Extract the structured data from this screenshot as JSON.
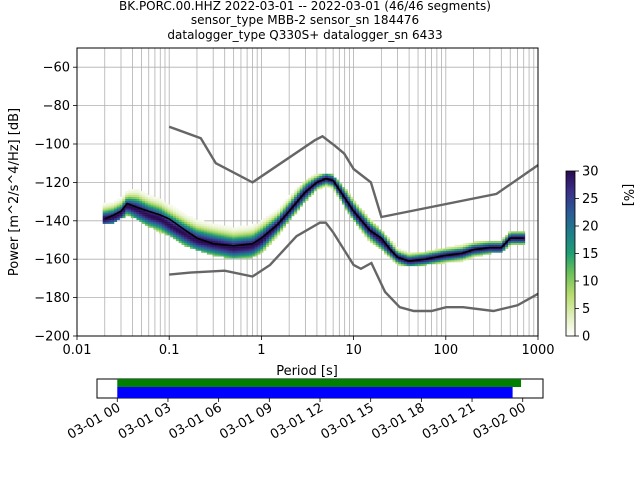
{
  "title_lines": [
    "BK.PORC.00.HHZ   2022-03-01 -- 2022-03-01  (46/46 segments)",
    "sensor_type MBB-2 sensor_sn 184476",
    "datalogger_type Q330S+ datalogger_sn 6433"
  ],
  "colors": {
    "mean_curve": "#000000",
    "noise_model": "#666666",
    "grid": "#b0b0b0",
    "coverage_green": "#008000",
    "coverage_blue": "#0000ff"
  },
  "chart_data": [
    {
      "type": "heatmap",
      "subtype": "probabilistic_psd",
      "xlabel": "Period [s]",
      "ylabel": "Power [m^2/s^4/Hz] [dB]",
      "xscale": "log",
      "xlim": [
        0.01,
        1000
      ],
      "ylim": [
        -200,
        -50
      ],
      "x_ticks": [
        0.01,
        0.1,
        1,
        10,
        100,
        1000
      ],
      "x_tick_labels": [
        "0.01",
        "0.1",
        "1",
        "10",
        "100",
        "1000"
      ],
      "y_ticks": [
        -200,
        -180,
        -160,
        -140,
        -120,
        -100,
        -80,
        -60
      ],
      "y_tick_labels": [
        "−200",
        "−180",
        "−160",
        "−140",
        "−120",
        "−100",
        "−80",
        "−60"
      ],
      "grid": true,
      "colorbar": {
        "label": "[%]",
        "range": [
          0,
          30
        ],
        "ticks": [
          0,
          5,
          10,
          15,
          20,
          25,
          30
        ],
        "tick_labels": [
          "0",
          "5",
          "10",
          "15",
          "20",
          "25",
          "30"
        ],
        "colormap": "pqlx"
      },
      "mean_psd": [
        [
          0.02,
          -139
        ],
        [
          0.025,
          -137
        ],
        [
          0.03,
          -135
        ],
        [
          0.035,
          -131
        ],
        [
          0.045,
          -133
        ],
        [
          0.06,
          -135
        ],
        [
          0.08,
          -137
        ],
        [
          0.1,
          -139
        ],
        [
          0.15,
          -145
        ],
        [
          0.2,
          -149
        ],
        [
          0.3,
          -152
        ],
        [
          0.5,
          -153
        ],
        [
          0.8,
          -152
        ],
        [
          1.0,
          -149
        ],
        [
          1.5,
          -142
        ],
        [
          2.0,
          -135
        ],
        [
          3.0,
          -125
        ],
        [
          4.0,
          -120
        ],
        [
          5.0,
          -118
        ],
        [
          6.0,
          -119
        ],
        [
          8.0,
          -128
        ],
        [
          10.0,
          -135
        ],
        [
          15.0,
          -145
        ],
        [
          20.0,
          -149
        ],
        [
          25.0,
          -155
        ],
        [
          30.0,
          -159
        ],
        [
          40.0,
          -161
        ],
        [
          60.0,
          -160
        ],
        [
          100.0,
          -158
        ],
        [
          150.0,
          -157
        ],
        [
          200.0,
          -155
        ],
        [
          300.0,
          -154
        ],
        [
          400.0,
          -154
        ],
        [
          500.0,
          -149
        ],
        [
          600.0,
          -149
        ],
        [
          700.0,
          -149
        ]
      ],
      "nhnm": [
        [
          0.1,
          -91
        ],
        [
          0.22,
          -97
        ],
        [
          0.32,
          -110
        ],
        [
          0.8,
          -120
        ],
        [
          3.8,
          -98
        ],
        [
          4.6,
          -96
        ],
        [
          6.3,
          -101
        ],
        [
          7.9,
          -105
        ],
        [
          10.0,
          -113
        ],
        [
          15.4,
          -120
        ],
        [
          20.0,
          -138
        ],
        [
          354.8,
          -126
        ],
        [
          1000.0,
          -111
        ]
      ],
      "nlnm": [
        [
          0.1,
          -168
        ],
        [
          0.17,
          -167
        ],
        [
          0.4,
          -166
        ],
        [
          0.8,
          -169
        ],
        [
          1.24,
          -163
        ],
        [
          2.4,
          -148
        ],
        [
          4.3,
          -141
        ],
        [
          5.0,
          -141
        ],
        [
          6.0,
          -146
        ],
        [
          10.0,
          -163
        ],
        [
          12.0,
          -165
        ],
        [
          15.6,
          -162
        ],
        [
          21.9,
          -177
        ],
        [
          31.6,
          -185
        ],
        [
          45.0,
          -187
        ],
        [
          70.0,
          -187
        ],
        [
          101.0,
          -185
        ],
        [
          154.0,
          -185
        ],
        [
          328.0,
          -187
        ],
        [
          600.0,
          -184
        ],
        [
          1000.0,
          -178
        ]
      ],
      "density_columns": [
        {
          "period": 0.02,
          "mode": -139,
          "spread": 3,
          "lo": -141,
          "hi": -130
        },
        {
          "period": 0.025,
          "mode": -138,
          "spread": 3,
          "lo": -140,
          "hi": -128
        },
        {
          "period": 0.03,
          "mode": -136,
          "spread": 3,
          "lo": -138,
          "hi": -126
        },
        {
          "period": 0.035,
          "mode": -132,
          "spread": 3,
          "lo": -136,
          "hi": -124
        },
        {
          "period": 0.045,
          "mode": -134,
          "spread": 4,
          "lo": -138,
          "hi": -124
        },
        {
          "period": 0.06,
          "mode": -137,
          "spread": 4,
          "lo": -142,
          "hi": -125
        },
        {
          "period": 0.08,
          "mode": -139,
          "spread": 4,
          "lo": -145,
          "hi": -127
        },
        {
          "period": 0.1,
          "mode": -142,
          "spread": 4,
          "lo": -147,
          "hi": -130
        },
        {
          "period": 0.15,
          "mode": -147,
          "spread": 4,
          "lo": -152,
          "hi": -135
        },
        {
          "period": 0.2,
          "mode": -150,
          "spread": 4,
          "lo": -154,
          "hi": -138
        },
        {
          "period": 0.3,
          "mode": -152,
          "spread": 4,
          "lo": -157,
          "hi": -140
        },
        {
          "period": 0.5,
          "mode": -154,
          "spread": 4,
          "lo": -159,
          "hi": -144
        },
        {
          "period": 0.8,
          "mode": -153,
          "spread": 4,
          "lo": -158,
          "hi": -142
        },
        {
          "period": 1.0,
          "mode": -150,
          "spread": 4,
          "lo": -156,
          "hi": -140
        },
        {
          "period": 1.5,
          "mode": -142,
          "spread": 3,
          "lo": -147,
          "hi": -134
        },
        {
          "period": 2.0,
          "mode": -135,
          "spread": 3,
          "lo": -139,
          "hi": -128
        },
        {
          "period": 3.0,
          "mode": -125,
          "spread": 3,
          "lo": -129,
          "hi": -120
        },
        {
          "period": 4.0,
          "mode": -120,
          "spread": 2,
          "lo": -123,
          "hi": -116
        },
        {
          "period": 5.0,
          "mode": -118,
          "spread": 2,
          "lo": -121,
          "hi": -116
        },
        {
          "period": 6.0,
          "mode": -119,
          "spread": 2,
          "lo": -123,
          "hi": -117
        },
        {
          "period": 8.0,
          "mode": -128,
          "spread": 3,
          "lo": -132,
          "hi": -124
        },
        {
          "period": 10.0,
          "mode": -135,
          "spread": 3,
          "lo": -139,
          "hi": -130
        },
        {
          "period": 15.0,
          "mode": -145,
          "spread": 3,
          "lo": -150,
          "hi": -140
        },
        {
          "period": 20.0,
          "mode": -150,
          "spread": 3,
          "lo": -154,
          "hi": -146
        },
        {
          "period": 30.0,
          "mode": -159,
          "spread": 2,
          "lo": -162,
          "hi": -155
        },
        {
          "period": 40.0,
          "mode": -161,
          "spread": 2,
          "lo": -163,
          "hi": -158
        },
        {
          "period": 60.0,
          "mode": -160,
          "spread": 2,
          "lo": -162,
          "hi": -157
        },
        {
          "period": 100.0,
          "mode": -158,
          "spread": 2,
          "lo": -161,
          "hi": -155
        },
        {
          "period": 150.0,
          "mode": -157,
          "spread": 2,
          "lo": -160,
          "hi": -153
        },
        {
          "period": 200.0,
          "mode": -155,
          "spread": 2,
          "lo": -158,
          "hi": -152
        },
        {
          "period": 300.0,
          "mode": -154,
          "spread": 2,
          "lo": -156,
          "hi": -151
        },
        {
          "period": 400.0,
          "mode": -154,
          "spread": 2,
          "lo": -156,
          "hi": -151
        },
        {
          "period": 500.0,
          "mode": -149,
          "spread": 2,
          "lo": -152,
          "hi": -146
        },
        {
          "period": 700.0,
          "mode": -149,
          "spread": 2,
          "lo": -152,
          "hi": -146
        }
      ]
    },
    {
      "type": "bar",
      "subtype": "data_coverage_timeline",
      "x_ticks": [
        "03-01 00",
        "03-01 03",
        "03-01 06",
        "03-01 09",
        "03-01 12",
        "03-01 15",
        "03-01 18",
        "03-01 21",
        "03-02 00"
      ],
      "x_range_hours": [
        -1.2,
        25.2
      ],
      "series": [
        {
          "color": "#008000",
          "start_hour": 0.0,
          "end_hour": 23.9
        },
        {
          "color": "#0000ff",
          "start_hour": 0.0,
          "end_hour": 23.4
        }
      ]
    }
  ]
}
